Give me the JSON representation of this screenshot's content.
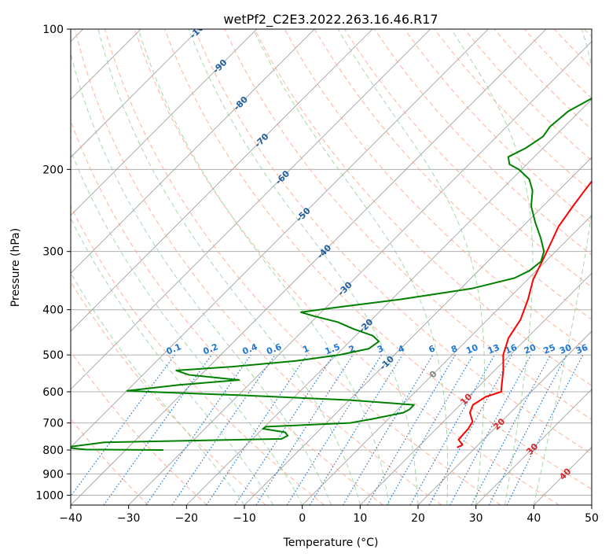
{
  "chart_data": {
    "type": "line",
    "title": "wetPf2_C2E3.2022.263.16.46.R17",
    "xlabel": "Temperature (°C)",
    "ylabel": "Pressure (hPa)",
    "xlim": [
      -40,
      50
    ],
    "ylim": [
      1050,
      100
    ],
    "x_ticks": [
      -40,
      -30,
      -20,
      -10,
      0,
      10,
      20,
      30,
      40,
      50
    ],
    "y_ticks": [
      1000,
      900,
      800,
      700,
      600,
      500,
      400,
      300,
      200,
      100
    ],
    "isotherm_labels": [
      -100,
      -90,
      -80,
      -70,
      -60,
      -50,
      -40,
      -30,
      -20,
      -10,
      0,
      10,
      20,
      30,
      40
    ],
    "mixing_ratio_labels": [
      "0.1",
      "0.2",
      "0.4",
      "0.6",
      "1",
      "1.5",
      "2",
      "3",
      "4",
      "6",
      "8",
      "10",
      "13",
      "16",
      "20",
      "25",
      "30",
      "36"
    ],
    "series": [
      {
        "name": "Temperature",
        "color": "#ff0000",
        "points": [
          {
            "p": 790,
            "t": 16.8
          },
          {
            "p": 780,
            "t": 17.3
          },
          {
            "p": 760,
            "t": 15.7
          },
          {
            "p": 720,
            "t": 15.5
          },
          {
            "p": 695,
            "t": 15.0
          },
          {
            "p": 665,
            "t": 13.0
          },
          {
            "p": 640,
            "t": 12.2
          },
          {
            "p": 615,
            "t": 13.0
          },
          {
            "p": 600,
            "t": 14.8
          },
          {
            "p": 585,
            "t": 14.0
          },
          {
            "p": 540,
            "t": 11.5
          },
          {
            "p": 500,
            "t": 8.8
          },
          {
            "p": 460,
            "t": 6.8
          },
          {
            "p": 420,
            "t": 5.7
          },
          {
            "p": 380,
            "t": 3.5
          },
          {
            "p": 345,
            "t": 1.0
          },
          {
            "p": 300,
            "t": -1.5
          },
          {
            "p": 265,
            "t": -3.8
          },
          {
            "p": 240,
            "t": -4.8
          },
          {
            "p": 222,
            "t": -5.5
          },
          {
            "p": 208,
            "t": -6.0
          },
          {
            "p": 200,
            "t": -5.5
          },
          {
            "p": 190,
            "t": -4.5
          },
          {
            "p": 180,
            "t": -1.5
          },
          {
            "p": 170,
            "t": 2.0
          },
          {
            "p": 162,
            "t": 5.0
          },
          {
            "p": 155,
            "t": 6.5
          },
          {
            "p": 140,
            "t": 10.0
          },
          {
            "p": 128,
            "t": 13.0
          },
          {
            "p": 118,
            "t": 16.8
          },
          {
            "p": 110,
            "t": 19.5
          },
          {
            "p": 100,
            "t": 22.5
          }
        ]
      },
      {
        "name": "Dewpoint",
        "color": "#008000",
        "points": [
          {
            "p": 800,
            "t": -33.5
          },
          {
            "p": 798,
            "t": -47.0
          },
          {
            "p": 790,
            "t": -51.0
          },
          {
            "p": 770,
            "t": -45.0
          },
          {
            "p": 757,
            "t": -15.0
          },
          {
            "p": 745,
            "t": -14.5
          },
          {
            "p": 733,
            "t": -15.5
          },
          {
            "p": 720,
            "t": -20.0
          },
          {
            "p": 713,
            "t": -19.8
          },
          {
            "p": 700,
            "t": -6.0
          },
          {
            "p": 685,
            "t": -2.5
          },
          {
            "p": 665,
            "t": 1.5
          },
          {
            "p": 655,
            "t": 2.0
          },
          {
            "p": 640,
            "t": 2.0
          },
          {
            "p": 625,
            "t": -10.0
          },
          {
            "p": 610,
            "t": -30.0
          },
          {
            "p": 602,
            "t": -43.0
          },
          {
            "p": 597,
            "t": -50.0
          },
          {
            "p": 580,
            "t": -42.0
          },
          {
            "p": 566,
            "t": -32.5
          },
          {
            "p": 552,
            "t": -42.0
          },
          {
            "p": 540,
            "t": -45.0
          },
          {
            "p": 530,
            "t": -36.0
          },
          {
            "p": 515,
            "t": -26.0
          },
          {
            "p": 500,
            "t": -19.5
          },
          {
            "p": 485,
            "t": -15.5
          },
          {
            "p": 468,
            "t": -15.0
          },
          {
            "p": 455,
            "t": -17.0
          },
          {
            "p": 440,
            "t": -21.5
          },
          {
            "p": 425,
            "t": -25.5
          },
          {
            "p": 413,
            "t": -30.5
          },
          {
            "p": 405,
            "t": -33.5
          },
          {
            "p": 395,
            "t": -28.0
          },
          {
            "p": 380,
            "t": -18.5
          },
          {
            "p": 360,
            "t": -8.0
          },
          {
            "p": 342,
            "t": -2.5
          },
          {
            "p": 330,
            "t": -1.2
          },
          {
            "p": 315,
            "t": -0.8
          },
          {
            "p": 300,
            "t": -2.0
          },
          {
            "p": 280,
            "t": -5.0
          },
          {
            "p": 260,
            "t": -8.5
          },
          {
            "p": 240,
            "t": -12.0
          },
          {
            "p": 222,
            "t": -14.5
          },
          {
            "p": 210,
            "t": -17.0
          },
          {
            "p": 200,
            "t": -20.5
          },
          {
            "p": 195,
            "t": -23.0
          },
          {
            "p": 188,
            "t": -24.5
          },
          {
            "p": 180,
            "t": -23.0
          },
          {
            "p": 170,
            "t": -22.0
          },
          {
            "p": 162,
            "t": -22.5
          },
          {
            "p": 150,
            "t": -22.0
          },
          {
            "p": 140,
            "t": -20.0
          },
          {
            "p": 128,
            "t": -19.5
          },
          {
            "p": 118,
            "t": -18.5
          },
          {
            "p": 110,
            "t": -15.5
          },
          {
            "p": 100,
            "t": -12.0
          }
        ]
      }
    ]
  },
  "colors": {
    "grid": "#b0b0b0",
    "isotherm": "#999999",
    "dry_adiabat": "#ff9f80",
    "moist_adiabat": "#8fcf8f",
    "mixing_ratio": "#1f77d0",
    "isotherm_label_cold": "#1f5fa0",
    "isotherm_label_zero": "#808080",
    "isotherm_label_warm": "#d62728"
  }
}
